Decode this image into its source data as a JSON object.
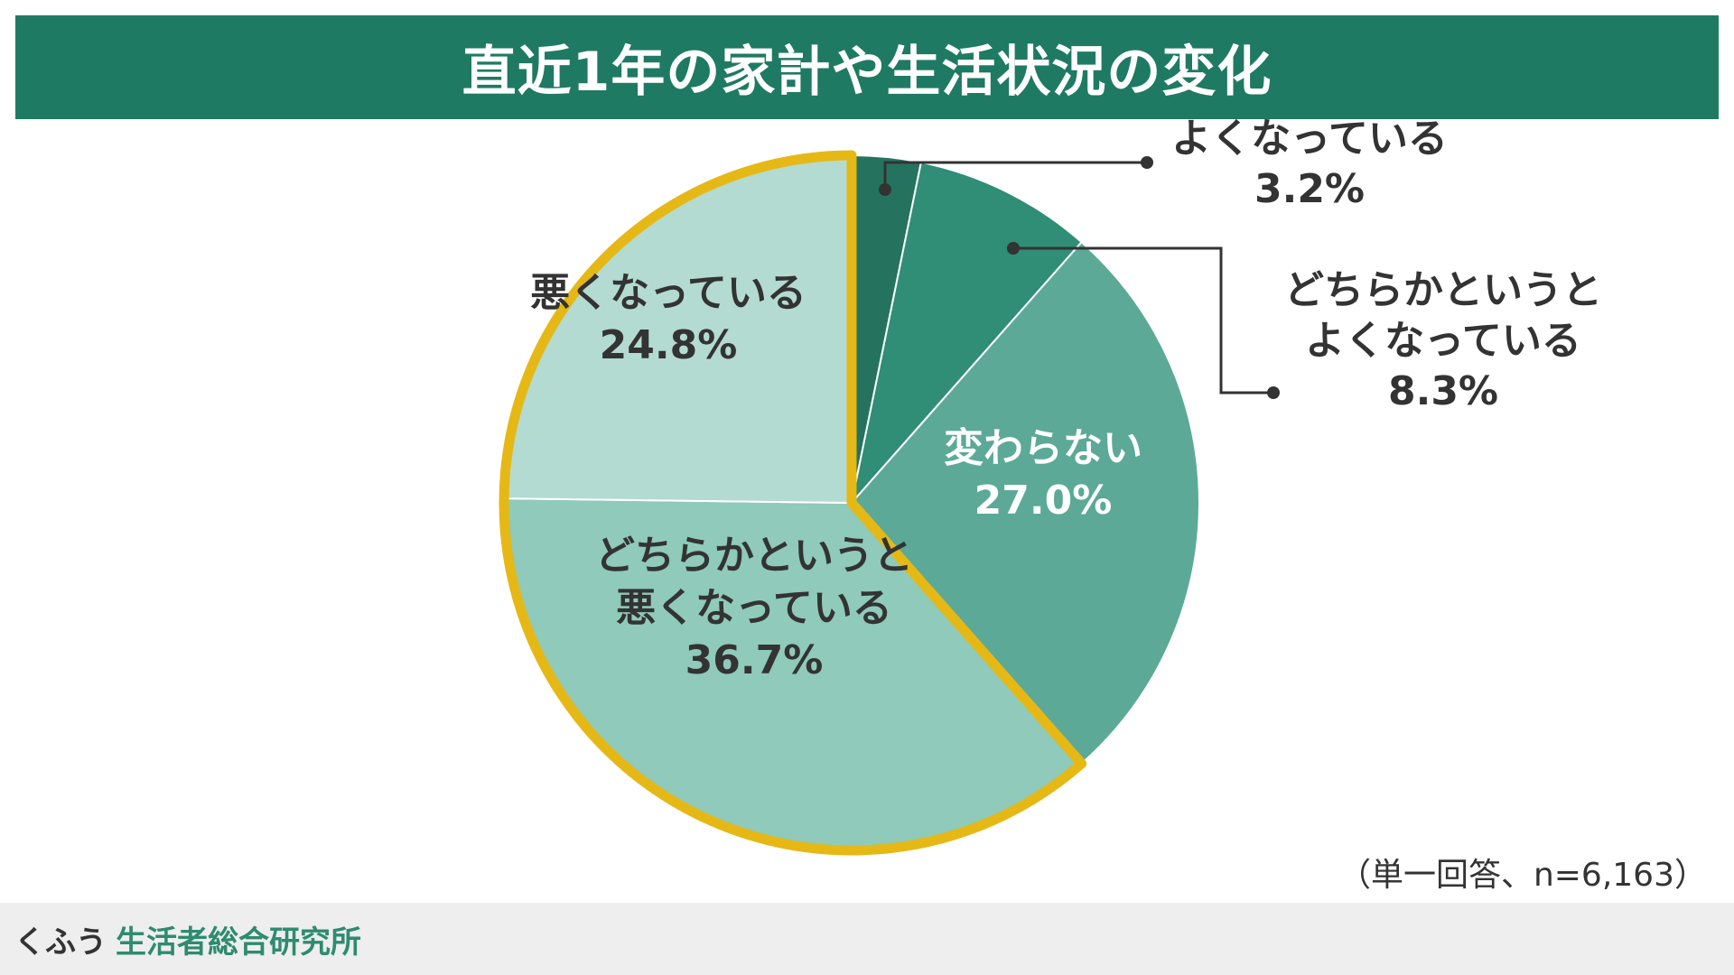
{
  "header": {
    "title": "直近1年の家計や生活状況の変化"
  },
  "chart_data": {
    "type": "pie",
    "title": "直近1年の家計や生活状況の変化",
    "start_angle_deg": 0,
    "direction": "clockwise",
    "slices": [
      {
        "label_lines": [
          "よくなっている"
        ],
        "value": 3.2,
        "value_label": "3.2%",
        "color": "#25735f",
        "label_style": "callout"
      },
      {
        "label_lines": [
          "どちらかというと",
          "よくなっている"
        ],
        "value": 8.3,
        "value_label": "8.3%",
        "color": "#2f8e75",
        "label_style": "callout"
      },
      {
        "label_lines": [
          "変わらない"
        ],
        "value": 27.0,
        "value_label": "27.0%",
        "color": "#5ca997",
        "label_style": "inside-light"
      },
      {
        "label_lines": [
          "どちらかというと",
          "悪くなっている"
        ],
        "value": 36.7,
        "value_label": "36.7%",
        "color": "#8fcaba",
        "label_style": "inside"
      },
      {
        "label_lines": [
          "悪くなっている"
        ],
        "value": 24.8,
        "value_label": "24.8%",
        "color": "#b3dbd1",
        "label_style": "inside"
      }
    ],
    "highlight": {
      "slices": [
        "どちらかというと 悪くなっている",
        "悪くなっている"
      ],
      "color": "#e6b816"
    }
  },
  "note": "（単一回答、n=6,163）",
  "footer": {
    "brand_prefix": "くふう",
    "brand_name": "生活者総合研究所"
  }
}
